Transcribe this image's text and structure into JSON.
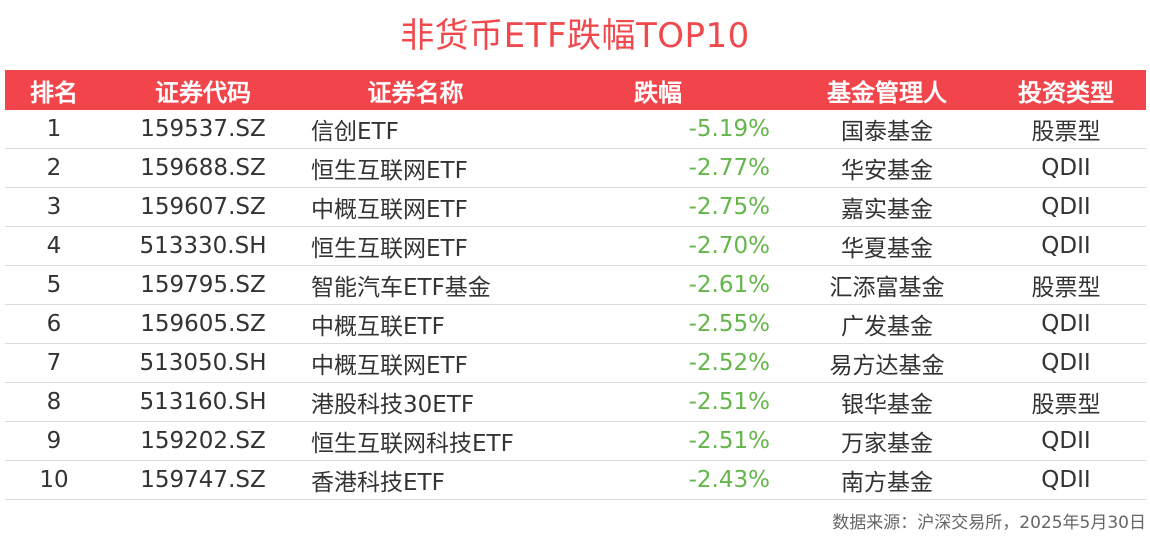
{
  "title": "非货币ETF跌幅TOP10",
  "headers": {
    "rank": "排名",
    "code": "证券代码",
    "name": "证券名称",
    "change": "跌幅",
    "manager": "基金管理人",
    "type": "投资类型"
  },
  "rows": [
    {
      "rank": "1",
      "code": "159537.SZ",
      "name": "信创ETF",
      "change": "-5.19%",
      "manager": "国泰基金",
      "type": "股票型"
    },
    {
      "rank": "2",
      "code": "159688.SZ",
      "name": "恒生互联网ETF",
      "change": "-2.77%",
      "manager": "华安基金",
      "type": "QDII"
    },
    {
      "rank": "3",
      "code": "159607.SZ",
      "name": "中概互联网ETF",
      "change": "-2.75%",
      "manager": "嘉实基金",
      "type": "QDII"
    },
    {
      "rank": "4",
      "code": "513330.SH",
      "name": "恒生互联网ETF",
      "change": "-2.70%",
      "manager": "华夏基金",
      "type": "QDII"
    },
    {
      "rank": "5",
      "code": "159795.SZ",
      "name": "智能汽车ETF基金",
      "change": "-2.61%",
      "manager": "汇添富基金",
      "type": "股票型"
    },
    {
      "rank": "6",
      "code": "159605.SZ",
      "name": "中概互联ETF",
      "change": "-2.55%",
      "manager": "广发基金",
      "type": "QDII"
    },
    {
      "rank": "7",
      "code": "513050.SH",
      "name": "中概互联网ETF",
      "change": "-2.52%",
      "manager": "易方达基金",
      "type": "QDII"
    },
    {
      "rank": "8",
      "code": "513160.SH",
      "name": "港股科技30ETF",
      "change": "-2.51%",
      "manager": "银华基金",
      "type": "股票型"
    },
    {
      "rank": "9",
      "code": "159202.SZ",
      "name": "恒生互联网科技ETF",
      "change": "-2.51%",
      "manager": "万家基金",
      "type": "QDII"
    },
    {
      "rank": "10",
      "code": "159747.SZ",
      "name": "香港科技ETF",
      "change": "-2.43%",
      "manager": "南方基金",
      "type": "QDII"
    }
  ],
  "source": "数据来源：沪深交易所，2025年5月30日",
  "colors": {
    "header_bg": "#f2454b",
    "title": "#f0484c",
    "negative_change": "#63b649"
  }
}
